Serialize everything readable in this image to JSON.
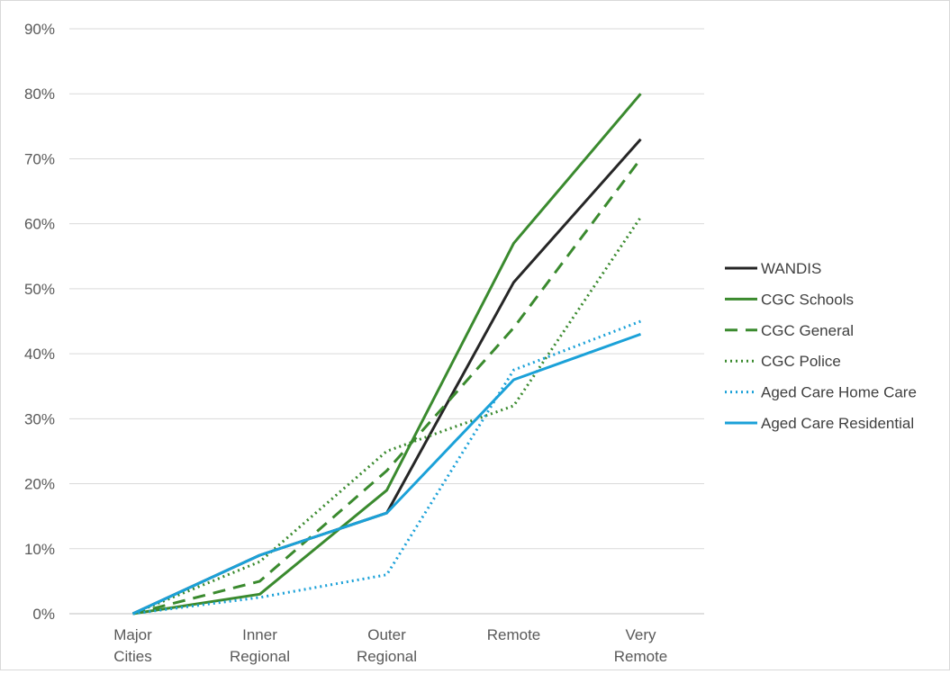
{
  "chart_data": {
    "type": "line",
    "title": "",
    "xlabel": "",
    "ylabel": "",
    "categories": [
      [
        "Major",
        "Cities"
      ],
      [
        "Inner",
        "Regional"
      ],
      [
        "Outer",
        "Regional"
      ],
      [
        "Remote"
      ],
      [
        "Very",
        "Remote"
      ]
    ],
    "ylim": [
      0,
      90
    ],
    "yticks": [
      0,
      10,
      20,
      30,
      40,
      50,
      60,
      70,
      80,
      90
    ],
    "ytick_labels": [
      "0%",
      "10%",
      "20%",
      "30%",
      "40%",
      "50%",
      "60%",
      "70%",
      "80%",
      "90%"
    ],
    "grid": true,
    "legend_position": "right",
    "series": [
      {
        "name": "WANDIS",
        "values": [
          0,
          9,
          15.5,
          51,
          73
        ],
        "color": "#262626",
        "dash": "solid"
      },
      {
        "name": "CGC Schools",
        "values": [
          0,
          3,
          19,
          57,
          80
        ],
        "color": "#3a8a2e",
        "dash": "solid"
      },
      {
        "name": "CGC General",
        "values": [
          0,
          5,
          22,
          44,
          70
        ],
        "color": "#3a8a2e",
        "dash": "dashed"
      },
      {
        "name": "CGC Police",
        "values": [
          0,
          8,
          25,
          32,
          61
        ],
        "color": "#3a8a2e",
        "dash": "dotted"
      },
      {
        "name": "Aged Care Home Care",
        "values": [
          0,
          2.5,
          6,
          37.5,
          45
        ],
        "color": "#1ba1d8",
        "dash": "dotted"
      },
      {
        "name": "Aged Care Residential",
        "values": [
          0,
          9,
          15.5,
          36,
          43
        ],
        "color": "#1ba1d8",
        "dash": "solid"
      }
    ]
  }
}
